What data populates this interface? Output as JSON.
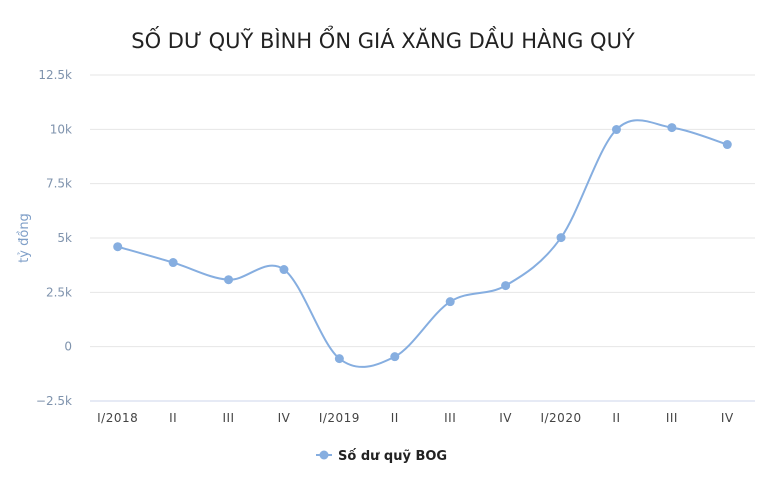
{
  "chart_data": {
    "type": "line",
    "title": "SỐ DƯ QUỸ BÌNH ỔN GIÁ XĂNG DẦU HÀNG QUÝ",
    "xlabel": "",
    "ylabel": "tỷ đồng",
    "categories": [
      "I/2018",
      "II",
      "III",
      "IV",
      "I/2019",
      "II",
      "III",
      "IV",
      "I/2020",
      "II",
      "III",
      "IV"
    ],
    "series": [
      {
        "name": "Số dư quỹ BOG",
        "values": [
          4600,
          3870,
          3080,
          3550,
          -550,
          -460,
          2070,
          2810,
          5020,
          9990,
          10080,
          9300
        ],
        "color": "#86aee0"
      }
    ],
    "ylim": [
      -2500,
      12500
    ],
    "yticks": [
      -2500,
      0,
      2500,
      5000,
      7500,
      10000,
      12500
    ],
    "ytick_labels": [
      "−2.5k",
      "0",
      "2.5k",
      "5k",
      "7.5k",
      "10k",
      "12.5k"
    ],
    "grid": true,
    "smooth": true,
    "legend_position": "bottom-center"
  }
}
